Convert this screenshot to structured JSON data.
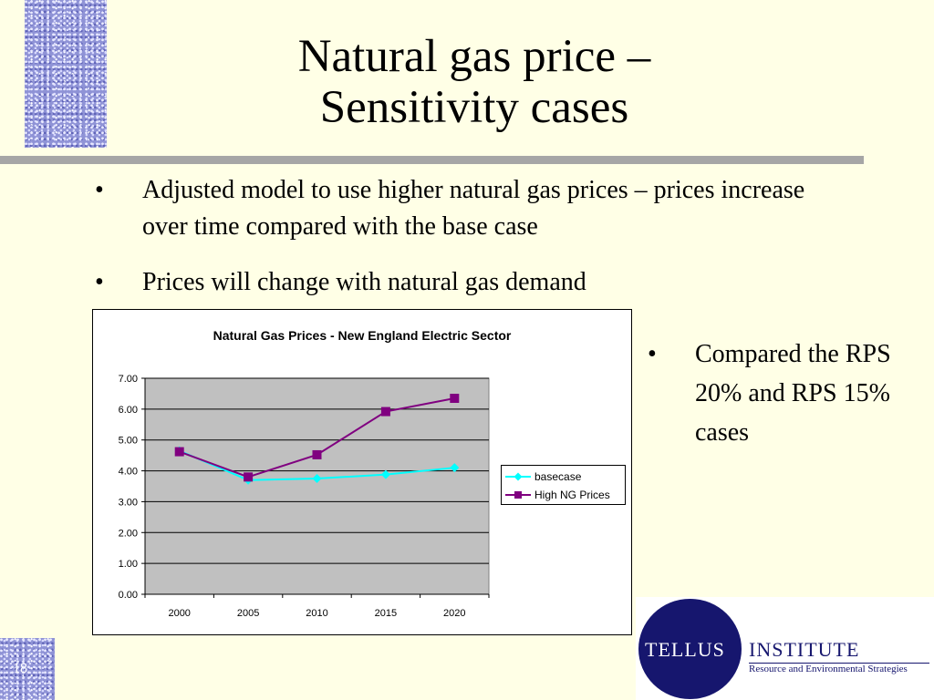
{
  "slide": {
    "title_line1": "Natural gas price –",
    "title_line2": "Sensitivity cases",
    "slide_number": "18",
    "bullet_symbol": "•",
    "bullets": [
      "Adjusted model to use higher natural gas prices – prices increase over time compared with the base case",
      "Prices will change with natural gas demand"
    ],
    "side_bullet": "Compared the RPS 20% and RPS 15% cases"
  },
  "logo": {
    "word1": "TELLUS",
    "word2": "INSTITUTE",
    "tagline": "Resource and Environmental Strategies",
    "color": "#16166e"
  },
  "colors": {
    "background": "#ffffe6",
    "title_rule": "#a6a6a6",
    "plot_area": "#c0c0c0"
  },
  "chart_data": {
    "type": "line",
    "title": "Natural Gas Prices - New England Electric Sector",
    "xlabel": "",
    "ylabel": "",
    "categories": [
      "2000",
      "2005",
      "2010",
      "2015",
      "2020"
    ],
    "ylim": [
      0,
      7
    ],
    "yticks": [
      "0.00",
      "1.00",
      "2.00",
      "3.00",
      "4.00",
      "5.00",
      "6.00",
      "7.00"
    ],
    "grid": true,
    "legend_position": "right",
    "series": [
      {
        "name": "basecase",
        "values": [
          4.65,
          3.7,
          3.75,
          3.88,
          4.1
        ],
        "color": "#00ffff",
        "marker": "diamond"
      },
      {
        "name": "High NG Prices",
        "values": [
          4.62,
          3.8,
          4.52,
          5.92,
          6.35
        ],
        "color": "#800080",
        "marker": "square"
      }
    ]
  }
}
